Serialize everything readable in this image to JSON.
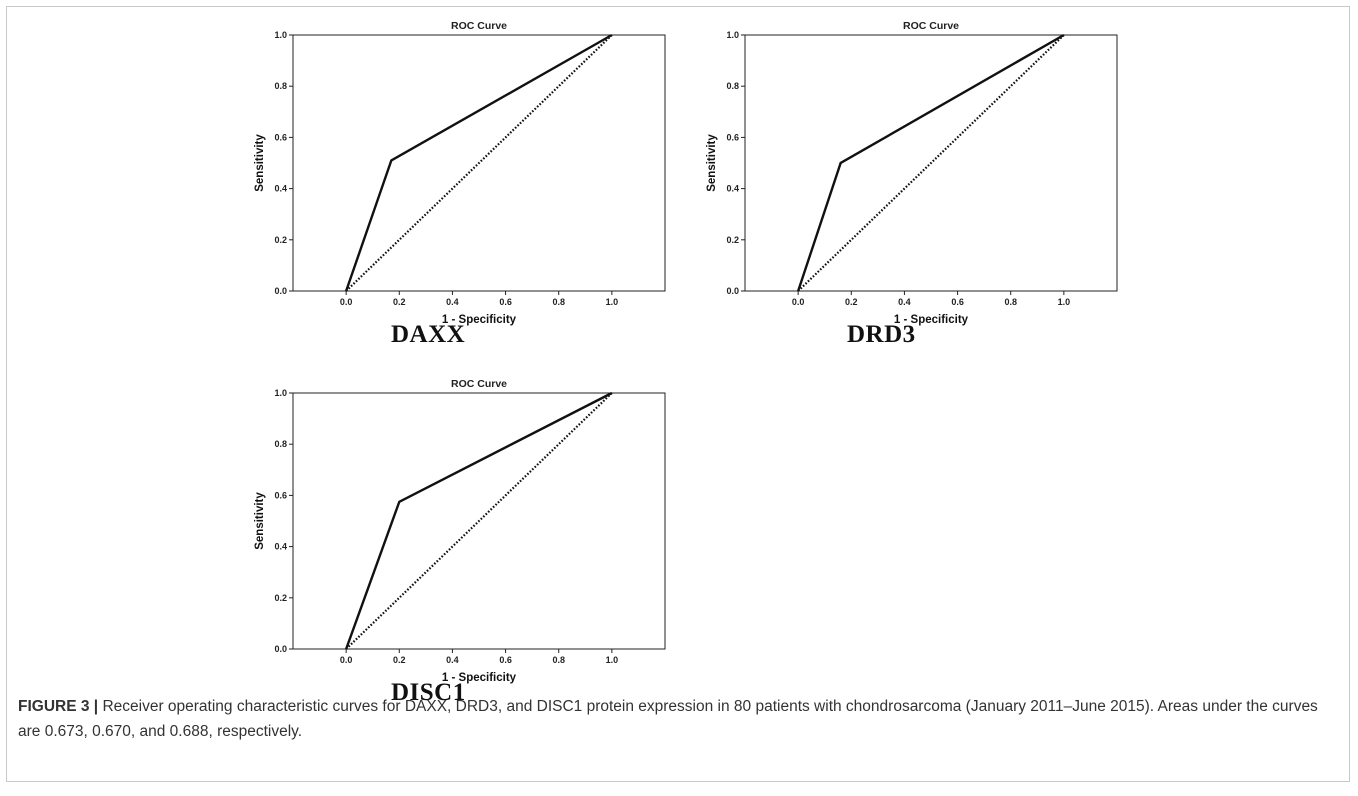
{
  "chart_data": [
    {
      "type": "line",
      "title": "ROC Curve",
      "panel_label": "DAXX",
      "xlabel": "1 - Specificity",
      "ylabel": "Sensitivity",
      "xlim": [
        -0.2,
        1.2
      ],
      "ylim": [
        0,
        1
      ],
      "xticks": [
        "0.0",
        "0.2",
        "0.4",
        "0.6",
        "0.8",
        "1.0"
      ],
      "yticks": [
        "0.0",
        "0.2",
        "0.4",
        "0.6",
        "0.8",
        "1.0"
      ],
      "grid": false,
      "series": [
        {
          "style": "solid",
          "x": [
            0,
            0.17,
            1
          ],
          "y": [
            0,
            0.51,
            1
          ]
        },
        {
          "style": "dotted",
          "x": [
            0,
            1
          ],
          "y": [
            0,
            1
          ]
        }
      ]
    },
    {
      "type": "line",
      "title": "ROC Curve",
      "panel_label": "DRD3",
      "xlabel": "1 - Specificity",
      "ylabel": "Sensitivity",
      "xlim": [
        -0.2,
        1.2
      ],
      "ylim": [
        0,
        1
      ],
      "xticks": [
        "0.0",
        "0.2",
        "0.4",
        "0.6",
        "0.8",
        "1.0"
      ],
      "yticks": [
        "0.0",
        "0.2",
        "0.4",
        "0.6",
        "0.8",
        "1.0"
      ],
      "grid": false,
      "series": [
        {
          "style": "solid",
          "x": [
            0,
            0.16,
            1
          ],
          "y": [
            0,
            0.5,
            1
          ]
        },
        {
          "style": "dotted",
          "x": [
            0,
            1
          ],
          "y": [
            0,
            1
          ]
        }
      ]
    },
    {
      "type": "line",
      "title": "ROC Curve",
      "panel_label": "DISC1",
      "xlabel": "1 - Specificity",
      "ylabel": "Sensitivity",
      "xlim": [
        -0.2,
        1.2
      ],
      "ylim": [
        0,
        1
      ],
      "xticks": [
        "0.0",
        "0.2",
        "0.4",
        "0.6",
        "0.8",
        "1.0"
      ],
      "yticks": [
        "0.0",
        "0.2",
        "0.4",
        "0.6",
        "0.8",
        "1.0"
      ],
      "grid": false,
      "series": [
        {
          "style": "solid",
          "x": [
            0,
            0.2,
            1
          ],
          "y": [
            0,
            0.575,
            1
          ]
        },
        {
          "style": "dotted",
          "x": [
            0,
            1
          ],
          "y": [
            0,
            1
          ]
        }
      ]
    }
  ],
  "caption": {
    "figure_number": "FIGURE 3 |",
    "text": " Receiver operating characteristic curves for DAXX, DRD3, and DISC1 protein expression in 80 patients with chondrosarcoma (January 2011–June 2015). Areas under the curves are 0.673, 0.670, and 0.688, respectively."
  },
  "colors": {
    "line": "#111111",
    "frame": "#c8c8c8",
    "caption_text": "#333333"
  }
}
